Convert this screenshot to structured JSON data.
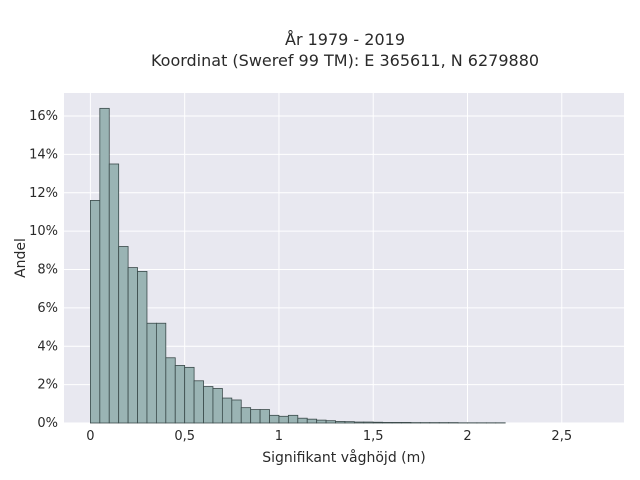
{
  "chart_data": {
    "type": "bar",
    "title_line1": "År 1979 - 2019",
    "title_line2": "Koordinat (Sweref 99 TM): E 365611, N 6279880",
    "xlabel": "Signifikant våghöjd (m)",
    "ylabel": "Andel",
    "bin_width": 0.05,
    "bin_starts": [
      0,
      0.05,
      0.1,
      0.15,
      0.2,
      0.25,
      0.3,
      0.35,
      0.4,
      0.45,
      0.5,
      0.55,
      0.6,
      0.65,
      0.7,
      0.75,
      0.8,
      0.85,
      0.9,
      0.95,
      1.0,
      1.05,
      1.1,
      1.15,
      1.2,
      1.25,
      1.3,
      1.35,
      1.4,
      1.45,
      1.5,
      1.55,
      1.6,
      1.65,
      1.7,
      1.75,
      1.8,
      1.85,
      1.9,
      1.95,
      2.0,
      2.05,
      2.1,
      2.15
    ],
    "values": [
      11.6,
      16.4,
      13.5,
      9.2,
      8.1,
      7.9,
      5.2,
      5.2,
      3.4,
      3.0,
      2.9,
      2.2,
      1.9,
      1.8,
      1.3,
      1.2,
      0.8,
      0.7,
      0.7,
      0.4,
      0.35,
      0.4,
      0.25,
      0.2,
      0.15,
      0.12,
      0.08,
      0.07,
      0.05,
      0.05,
      0.04,
      0.03,
      0.03,
      0.03,
      0.02,
      0.02,
      0.02,
      0.02,
      0.02,
      0.01,
      0.01,
      0.01,
      0.01,
      0.01
    ],
    "xlim": [
      -0.14,
      2.83
    ],
    "ylim": [
      0,
      17.2
    ],
    "x_ticks": [
      0,
      0.5,
      1,
      1.5,
      2,
      2.5
    ],
    "x_tick_labels": [
      "0",
      "0,5",
      "1",
      "1,5",
      "2",
      "2,5"
    ],
    "y_ticks": [
      0,
      2,
      4,
      6,
      8,
      10,
      12,
      14,
      16
    ],
    "y_tick_labels": [
      "0%",
      "2%",
      "4%",
      "6%",
      "8%",
      "10%",
      "12%",
      "14%",
      "16%"
    ],
    "grid": true,
    "colors": {
      "bar_fill": "#9ab4b4",
      "bar_stroke": "#3a4a4a",
      "plot_bg": "#e8e8f0",
      "grid": "#ffffff"
    }
  }
}
